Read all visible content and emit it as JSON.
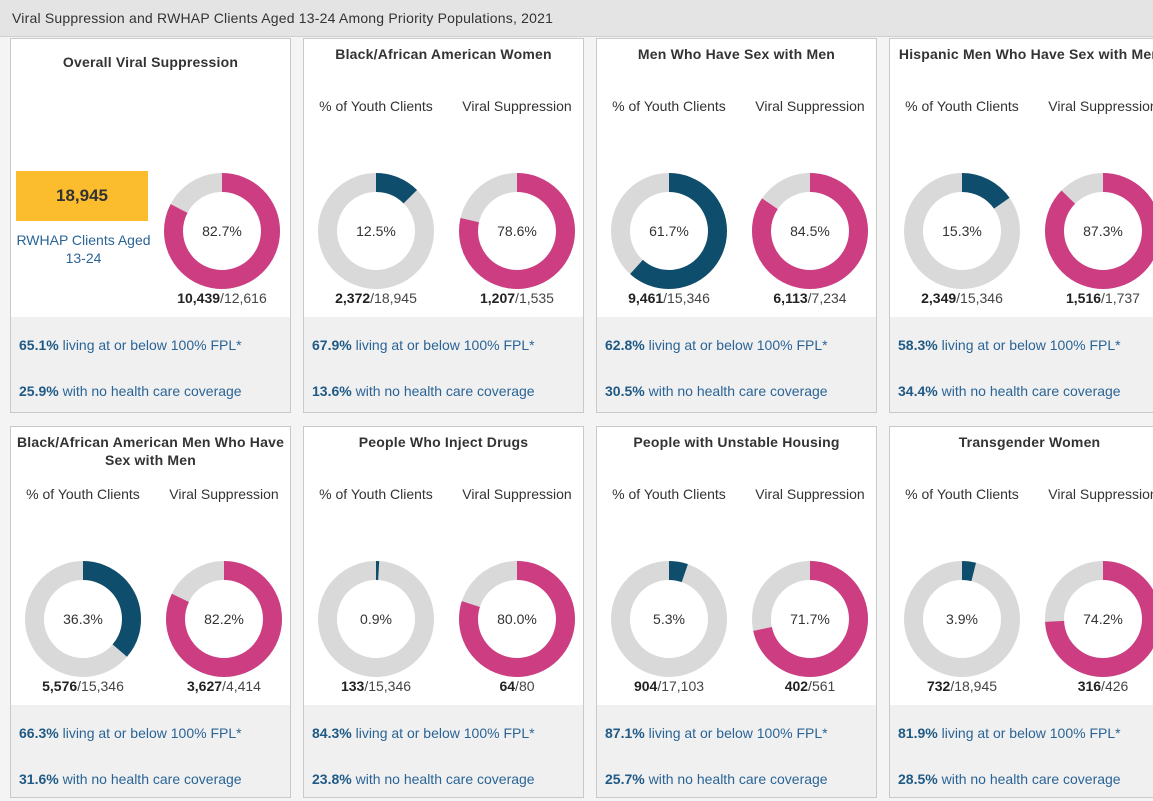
{
  "header": {
    "title": "Viral Suppression and RWHAP Clients Aged 13-24 Among Priority Populations, 2021"
  },
  "overall": {
    "clients": "18,945",
    "clients_label": "RWHAP Clients Aged 13-24"
  },
  "panels": [
    {
      "title": "Overall Viral Suppression",
      "fpl_value": "65.1%",
      "fpl_text": " living at or below 100% FPL*",
      "coverage_value": "25.9%",
      "coverage_text": " with no health care coverage"
    },
    {
      "title": "Black/African American Women",
      "fpl_value": "67.9%",
      "fpl_text": " living at or below 100% FPL*",
      "coverage_value": "13.6%",
      "coverage_text": " with no health care coverage"
    },
    {
      "title": "Men Who Have Sex with Men",
      "fpl_value": "62.8%",
      "fpl_text": " living at or below 100% FPL*",
      "coverage_value": "30.5%",
      "coverage_text": " with no health care coverage"
    },
    {
      "title": "Hispanic Men Who Have Sex with Men",
      "fpl_value": "58.3%",
      "fpl_text": " living at or below 100% FPL*",
      "coverage_value": "34.4%",
      "coverage_text": " with no health care coverage"
    },
    {
      "title": "Black/African American Men Who Have Sex with Men",
      "fpl_value": "66.3%",
      "fpl_text": " living at or below 100% FPL*",
      "coverage_value": "31.6%",
      "coverage_text": " with no health care coverage"
    },
    {
      "title": "People Who Inject Drugs",
      "fpl_value": "84.3%",
      "fpl_text": " living at or below 100% FPL*",
      "coverage_value": "23.8%",
      "coverage_text": " with no health care coverage"
    },
    {
      "title": "People with Unstable Housing",
      "fpl_value": "87.1%",
      "fpl_text": " living at or below 100% FPL*",
      "coverage_value": "25.7%",
      "coverage_text": " with no health care coverage"
    },
    {
      "title": "Transgender Women",
      "fpl_value": "81.9%",
      "fpl_text": " living at or below 100% FPL*",
      "coverage_value": "28.5%",
      "coverage_text": " with no health care coverage"
    }
  ],
  "chart_data": [
    {
      "type": "donut",
      "values": [
        82.7
      ],
      "value_labels": [
        "82.7%"
      ],
      "numerator": "10,439",
      "denominator": "12,616",
      "color": "#cc3d82"
    },
    {
      "type": "donut",
      "title": "% of Youth Clients",
      "values": [
        12.5
      ],
      "value_labels": [
        "12.5%"
      ],
      "numerator": "2,372",
      "denominator": "18,945",
      "color": "#0e4d6b"
    },
    {
      "type": "donut",
      "title": "Viral Suppression",
      "values": [
        78.6
      ],
      "value_labels": [
        "78.6%"
      ],
      "numerator": "1,207",
      "denominator": "1,535",
      "color": "#cc3d82"
    },
    {
      "type": "donut",
      "title": "% of Youth Clients",
      "values": [
        61.7
      ],
      "value_labels": [
        "61.7%"
      ],
      "numerator": "9,461",
      "denominator": "15,346",
      "color": "#0e4d6b"
    },
    {
      "type": "donut",
      "title": "Viral Suppression",
      "values": [
        84.5
      ],
      "value_labels": [
        "84.5%"
      ],
      "numerator": "6,113",
      "denominator": "7,234",
      "color": "#cc3d82"
    },
    {
      "type": "donut",
      "title": "% of Youth Clients",
      "values": [
        15.3
      ],
      "value_labels": [
        "15.3%"
      ],
      "numerator": "2,349",
      "denominator": "15,346",
      "color": "#0e4d6b"
    },
    {
      "type": "donut",
      "title": "Viral Suppression",
      "values": [
        87.3
      ],
      "value_labels": [
        "87.3%"
      ],
      "numerator": "1,516",
      "denominator": "1,737",
      "color": "#cc3d82"
    },
    {
      "type": "donut",
      "title": "% of Youth Clients",
      "values": [
        36.3
      ],
      "value_labels": [
        "36.3%"
      ],
      "numerator": "5,576",
      "denominator": "15,346",
      "color": "#0e4d6b"
    },
    {
      "type": "donut",
      "title": "Viral Suppression",
      "values": [
        82.2
      ],
      "value_labels": [
        "82.2%"
      ],
      "numerator": "3,627",
      "denominator": "4,414",
      "color": "#cc3d82"
    },
    {
      "type": "donut",
      "title": "% of Youth Clients",
      "values": [
        0.9
      ],
      "value_labels": [
        "0.9%"
      ],
      "numerator": "133",
      "denominator": "15,346",
      "color": "#0e4d6b"
    },
    {
      "type": "donut",
      "title": "Viral Suppression",
      "values": [
        80.0
      ],
      "value_labels": [
        "80.0%"
      ],
      "numerator": "64",
      "denominator": "80",
      "color": "#cc3d82"
    },
    {
      "type": "donut",
      "title": "% of Youth Clients",
      "values": [
        5.3
      ],
      "value_labels": [
        "5.3%"
      ],
      "numerator": "904",
      "denominator": "17,103",
      "color": "#0e4d6b"
    },
    {
      "type": "donut",
      "title": "Viral Suppression",
      "values": [
        71.7
      ],
      "value_labels": [
        "71.7%"
      ],
      "numerator": "402",
      "denominator": "561",
      "color": "#cc3d82"
    },
    {
      "type": "donut",
      "title": "% of Youth Clients",
      "values": [
        3.9
      ],
      "value_labels": [
        "3.9%"
      ],
      "numerator": "732",
      "denominator": "18,945",
      "color": "#0e4d6b"
    },
    {
      "type": "donut",
      "title": "Viral Suppression",
      "values": [
        74.2
      ],
      "value_labels": [
        "74.2%"
      ],
      "numerator": "316",
      "denominator": "426",
      "color": "#cc3d82"
    }
  ]
}
